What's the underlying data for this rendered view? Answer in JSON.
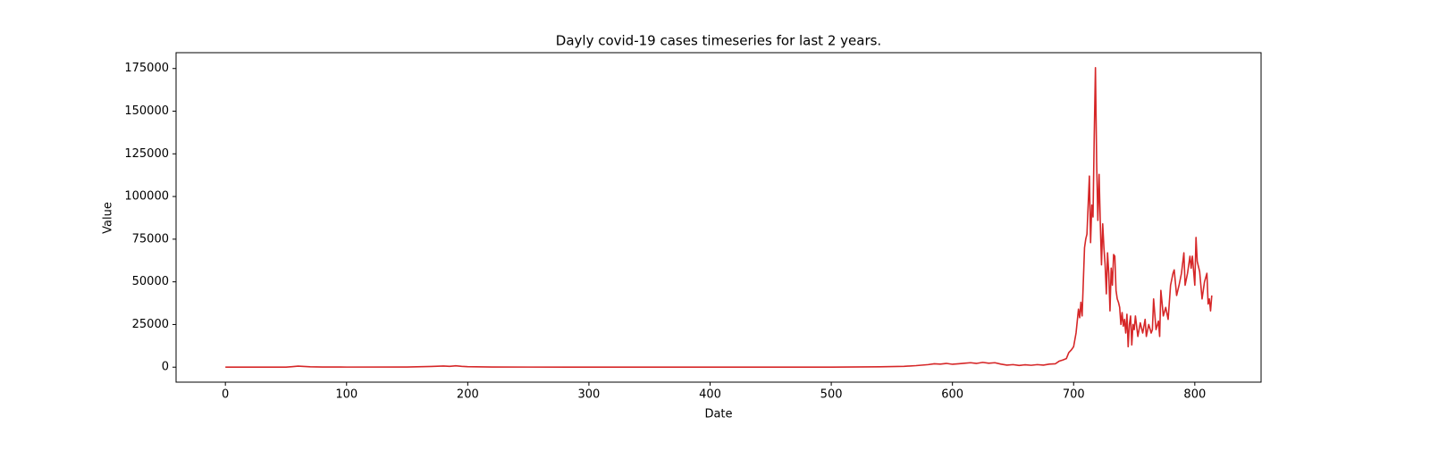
{
  "chart_data": {
    "type": "line",
    "title": "Dayly covid-19 cases timeseries for last 2 years.",
    "x_label": "Date",
    "y_label": "Value",
    "color": "#d62728",
    "x": [
      0,
      50,
      55,
      60,
      65,
      70,
      80,
      100,
      150,
      170,
      180,
      185,
      190,
      195,
      200,
      220,
      250,
      300,
      400,
      500,
      540,
      560,
      570,
      580,
      585,
      590,
      595,
      600,
      605,
      610,
      615,
      620,
      625,
      630,
      635,
      640,
      645,
      650,
      655,
      660,
      665,
      670,
      675,
      680,
      685,
      688,
      691,
      694,
      696,
      698,
      700,
      702,
      704,
      705,
      706,
      707,
      708,
      709,
      710,
      711,
      712,
      713,
      714,
      715,
      716,
      717,
      718,
      719,
      720,
      721,
      722,
      723,
      724,
      725,
      726,
      727,
      728,
      729,
      730,
      731,
      732,
      733,
      734,
      735,
      736,
      737,
      738,
      739,
      740,
      741,
      742,
      743,
      744,
      745,
      746,
      747,
      748,
      749,
      750,
      751,
      753,
      755,
      757,
      759,
      760,
      762,
      764,
      765,
      766,
      768,
      770,
      771,
      772,
      774,
      776,
      778,
      780,
      782,
      783,
      785,
      787,
      789,
      791,
      792,
      794,
      796,
      797,
      798,
      800,
      801,
      802,
      804,
      806,
      808,
      810,
      811,
      812,
      813,
      814
    ],
    "values": [
      0,
      0,
      300,
      600,
      400,
      200,
      100,
      50,
      100,
      400,
      700,
      500,
      800,
      500,
      300,
      100,
      50,
      30,
      20,
      30,
      200,
      500,
      900,
      1500,
      2000,
      1800,
      2200,
      1700,
      2000,
      2300,
      2600,
      2200,
      2800,
      2300,
      2600,
      1800,
      1200,
      1500,
      1000,
      1400,
      1100,
      1500,
      1200,
      1800,
      2000,
      3500,
      4200,
      5000,
      8500,
      10000,
      12000,
      20000,
      34000,
      29000,
      38000,
      30000,
      50000,
      70000,
      75000,
      78000,
      95000,
      112000,
      73000,
      95000,
      88000,
      135000,
      175500,
      120000,
      86000,
      113000,
      85000,
      60000,
      84000,
      70000,
      60000,
      43000,
      67000,
      55000,
      33000,
      58000,
      48000,
      66000,
      65000,
      45000,
      40000,
      38000,
      35000,
      25000,
      32000,
      24000,
      28000,
      20000,
      31000,
      12000,
      25000,
      30000,
      13000,
      25000,
      22000,
      30000,
      18000,
      26000,
      20000,
      28000,
      18000,
      25000,
      20000,
      22000,
      40000,
      22000,
      27000,
      18000,
      45000,
      30000,
      35000,
      28000,
      48000,
      55000,
      57000,
      42000,
      48000,
      55000,
      67000,
      48000,
      55000,
      65000,
      58000,
      65000,
      48000,
      76000,
      62000,
      56000,
      40000,
      50000,
      55000,
      37000,
      40000,
      33000,
      42000
    ],
    "xlim": [
      -40.7,
      854.7
    ],
    "xticks": [
      0,
      100,
      200,
      300,
      400,
      500,
      600,
      700,
      800
    ],
    "ylim": [
      -8775,
      184275
    ],
    "yticks": [
      0,
      25000,
      50000,
      75000,
      100000,
      125000,
      150000,
      175000
    ],
    "grid": false
  }
}
